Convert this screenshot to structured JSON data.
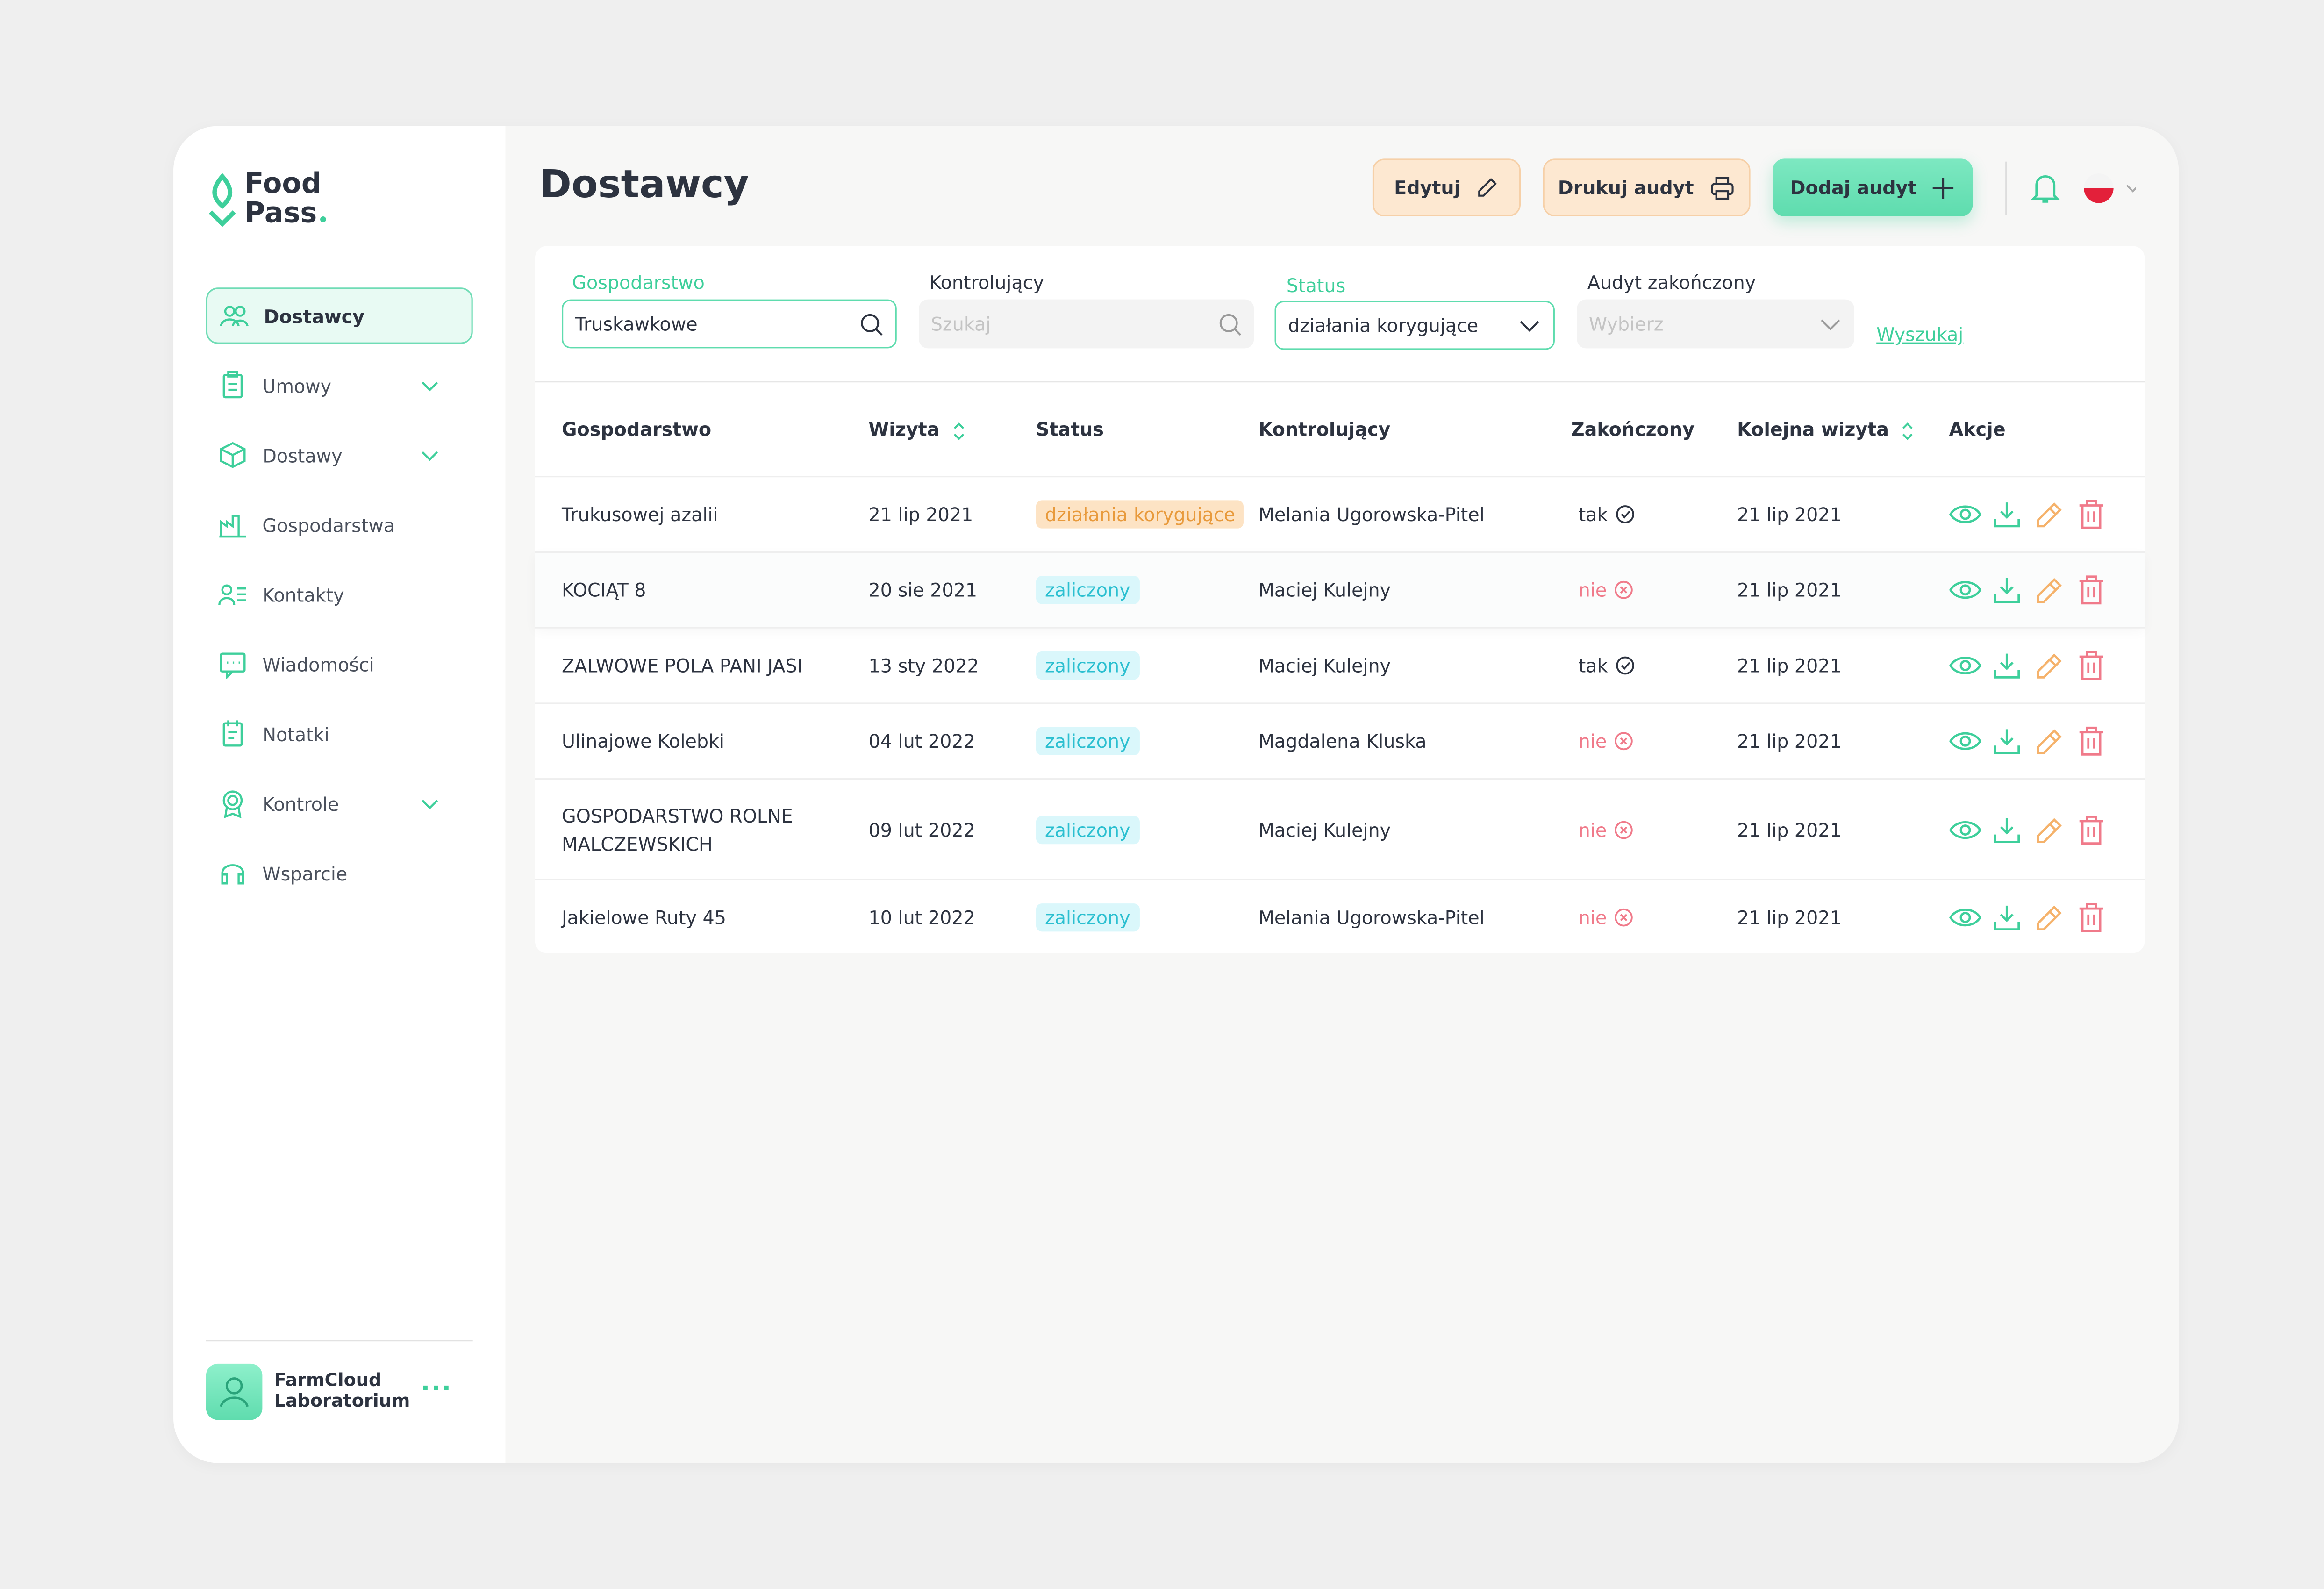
{
  "logo": {
    "line1": "Food",
    "line2": "Pass"
  },
  "nav": [
    "Dostawcy",
    "Umowy",
    "Dostawy",
    "Gospodarstwa",
    "Kontakty",
    "Wiadomości",
    "Notatki",
    "Kontrole",
    "Wsparcie"
  ],
  "user": {
    "line1": "FarmCloud",
    "line2": "Laboratorium"
  },
  "page_title": "Dostawcy",
  "buttons": [
    "Edytuj",
    "Drukuj audyt",
    "Dodaj audyt"
  ],
  "filters": [
    {
      "label": "Gospodarstwo",
      "value": "Truskawkowe"
    },
    {
      "label": "Kontrolujący",
      "placeholder": "Szukaj"
    },
    {
      "label": "Status",
      "value": "działania korygujące"
    },
    {
      "label": "Audyt zakończony",
      "placeholder": "Wybierz"
    }
  ],
  "search_link": "Wyszukaj",
  "table": {
    "headers": [
      "Gospodarstwo",
      "Wizyta",
      "Status",
      "Kontrolujący",
      "Zakończony",
      "Kolejna wizyta",
      "Akcje"
    ],
    "rows": [
      [
        "Trukusowej azalii",
        "21 lip 2021",
        "działania korygujące",
        "Melania Ugorowska-Pitel",
        "tak",
        "21 lip 2021"
      ],
      [
        "KOCIĄT 8",
        "20 sie 2021",
        "zaliczony",
        "Maciej Kulejny",
        "nie",
        "21 lip 2021"
      ],
      [
        "ZALWOWE POLA PANI JASI",
        "13 sty 2022",
        "zaliczony",
        "Maciej Kulejny",
        "tak",
        "21 lip 2021"
      ],
      [
        "Ulinajowe Kolebki",
        "04 lut 2022",
        "zaliczony",
        "Magdalena Kluska",
        "nie",
        "21 lip 2021"
      ],
      [
        "GOSPODARSTWO ROLNE MALCZEWSKICH",
        "09 lut 2022",
        "zaliczony",
        "Maciej Kulejny",
        "nie",
        "21 lip 2021"
      ],
      [
        "Jakielowe Ruty 45",
        "10 lut 2022",
        "zaliczony",
        "Melania Ugorowska-Pitel",
        "nie",
        "21 lip 2021"
      ]
    ]
  }
}
